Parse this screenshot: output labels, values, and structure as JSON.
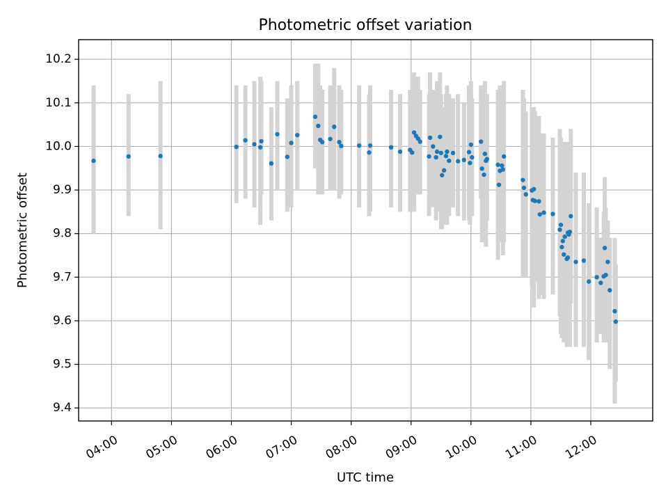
{
  "chart_data": {
    "type": "scatter",
    "title": "Photometric offset variation",
    "xlabel": "UTC time",
    "ylabel": "Photometric offset",
    "x_unit": "UTC time (HH:MM)",
    "xlim": [
      "03:27",
      "13:02"
    ],
    "ylim": [
      9.37,
      10.245
    ],
    "x_ticks": [
      "04:00",
      "05:00",
      "06:00",
      "07:00",
      "08:00",
      "09:00",
      "10:00",
      "11:00",
      "12:00"
    ],
    "y_ticks": [
      "9.4",
      "9.5",
      "9.6",
      "9.7",
      "9.8",
      "9.9",
      "10.0",
      "10.1",
      "10.2"
    ],
    "grid": true,
    "colors": {
      "marker": "#1f77b4",
      "errorbar": "#d3d3d3"
    },
    "series": [
      {
        "x": [
          "03:42",
          "04:17",
          "04:49",
          "06:05",
          "06:14",
          "06:23",
          "06:29",
          "06:30",
          "06:40",
          "06:46",
          "06:56",
          "07:00",
          "07:06",
          "07:24",
          "07:27",
          "07:29",
          "07:31",
          "07:39",
          "07:43",
          "07:48",
          "07:50",
          "08:08",
          "08:18",
          "08:19",
          "08:40",
          "08:49",
          "08:59",
          "09:01",
          "09:03",
          "09:05",
          "09:07",
          "09:09",
          "09:18",
          "09:19",
          "09:22",
          "09:25",
          "09:26",
          "09:29",
          "09:30",
          "09:31",
          "09:33",
          "09:35",
          "09:36",
          "09:38",
          "09:42",
          "09:47",
          "09:53",
          "09:58",
          "09:59",
          "10:00",
          "10:01",
          "10:10",
          "10:11",
          "10:13",
          "10:14",
          "10:15",
          "10:16",
          "10:27",
          "10:28",
          "10:29",
          "10:31",
          "10:32",
          "10:33",
          "10:52",
          "10:53",
          "10:55",
          "11:01",
          "11:02",
          "11:03",
          "11:04",
          "11:08",
          "11:09",
          "11:13",
          "11:22",
          "11:29",
          "11:30",
          "11:31",
          "11:32",
          "11:33",
          "11:34",
          "11:36",
          "11:37",
          "11:37",
          "11:38",
          "11:39",
          "11:40",
          "11:45",
          "11:53",
          "11:58",
          "12:06",
          "12:10",
          "12:13",
          "12:14",
          "12:15",
          "12:17",
          "12:19",
          "12:24",
          "12:25"
        ],
        "y": [
          9.967,
          9.977,
          9.978,
          9.999,
          10.014,
          10.005,
          9.998,
          10.012,
          9.961,
          10.028,
          9.976,
          10.008,
          10.026,
          10.068,
          10.047,
          10.015,
          10.01,
          10.017,
          10.045,
          10.01,
          10.001,
          10.002,
          9.986,
          10.002,
          9.998,
          9.988,
          9.992,
          9.986,
          10.032,
          10.024,
          10.018,
          10.011,
          9.977,
          10.02,
          10.0,
          9.975,
          9.988,
          10.022,
          9.985,
          9.934,
          9.945,
          9.978,
          9.988,
          9.967,
          9.985,
          9.966,
          9.969,
          9.987,
          9.962,
          10.004,
          9.975,
          10.011,
          9.949,
          9.935,
          9.983,
          9.967,
          9.971,
          9.958,
          9.912,
          9.944,
          9.956,
          9.947,
          9.977,
          9.923,
          9.905,
          9.89,
          9.899,
          9.877,
          9.902,
          9.875,
          9.874,
          9.844,
          9.848,
          9.845,
          9.809,
          9.82,
          9.769,
          9.783,
          9.752,
          9.793,
          9.742,
          9.745,
          9.802,
          9.798,
          9.804,
          9.84,
          9.735,
          9.738,
          9.69,
          9.7,
          9.687,
          9.702,
          9.767,
          9.705,
          9.735,
          9.67,
          9.622,
          9.598
        ],
        "err_low": [
          9.8,
          9.84,
          9.81,
          9.87,
          9.88,
          9.86,
          9.82,
          9.89,
          9.83,
          9.9,
          9.85,
          9.86,
          9.9,
          9.95,
          9.89,
          9.89,
          9.89,
          9.9,
          9.9,
          9.88,
          9.89,
          9.86,
          9.84,
          9.85,
          9.86,
          9.85,
          9.85,
          9.86,
          9.85,
          9.89,
          9.89,
          9.89,
          9.84,
          9.87,
          9.86,
          9.83,
          9.85,
          9.88,
          9.81,
          9.81,
          9.82,
          9.84,
          9.82,
          9.84,
          9.86,
          9.84,
          9.83,
          9.83,
          9.82,
          9.86,
          9.84,
          9.88,
          9.78,
          9.8,
          9.78,
          9.77,
          9.83,
          9.74,
          9.81,
          9.81,
          9.78,
          9.75,
          9.78,
          9.7,
          9.71,
          9.7,
          9.68,
          9.67,
          9.63,
          9.69,
          9.65,
          9.66,
          9.65,
          9.66,
          9.61,
          9.57,
          9.56,
          9.65,
          9.55,
          9.57,
          9.54,
          9.58,
          9.62,
          9.63,
          9.54,
          9.64,
          9.54,
          9.54,
          9.51,
          9.55,
          9.57,
          9.55,
          9.62,
          9.56,
          9.55,
          9.49,
          9.41,
          9.46
        ],
        "err_high": [
          10.14,
          10.12,
          10.15,
          10.14,
          10.14,
          10.15,
          10.16,
          10.15,
          10.09,
          10.15,
          10.11,
          10.14,
          10.15,
          10.19,
          10.19,
          10.14,
          10.13,
          10.14,
          10.18,
          10.14,
          10.13,
          10.14,
          10.12,
          10.14,
          10.13,
          10.12,
          10.13,
          10.12,
          10.17,
          10.16,
          10.16,
          10.13,
          10.12,
          10.17,
          10.13,
          10.12,
          10.15,
          10.17,
          10.12,
          10.06,
          10.09,
          10.12,
          10.14,
          10.12,
          10.11,
          10.12,
          10.1,
          10.14,
          10.1,
          10.15,
          10.11,
          10.14,
          10.12,
          10.07,
          10.15,
          10.11,
          10.12,
          10.13,
          10.02,
          10.14,
          10.13,
          10.14,
          10.15,
          10.13,
          10.11,
          10.08,
          10.09,
          10.07,
          10.09,
          10.08,
          10.07,
          10.03,
          10.03,
          10.02,
          10.04,
          10.02,
          9.97,
          9.99,
          9.95,
          10.01,
          9.97,
          9.94,
          10.01,
          9.98,
          9.99,
          10.04,
          9.94,
          9.94,
          9.87,
          9.86,
          9.79,
          9.85,
          9.93,
          9.86,
          9.83,
          9.79,
          9.79,
          9.73
        ]
      }
    ]
  }
}
